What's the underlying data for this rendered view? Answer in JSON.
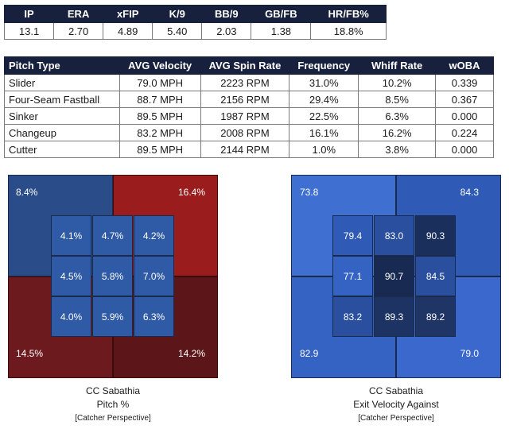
{
  "stats": {
    "headers": [
      "IP",
      "ERA",
      "xFIP",
      "K/9",
      "BB/9",
      "GB/FB",
      "HR/FB%"
    ],
    "values": [
      "13.1",
      "2.70",
      "4.89",
      "5.40",
      "2.03",
      "1.38",
      "18.8%"
    ]
  },
  "pitches": {
    "headers": [
      "Pitch Type",
      "AVG Velocity",
      "AVG Spin Rate",
      "Frequency",
      "Whiff Rate",
      "wOBA"
    ],
    "rows": [
      [
        "Slider",
        "79.0 MPH",
        "2223 RPM",
        "31.0%",
        "10.2%",
        "0.339"
      ],
      [
        "Four-Seam Fastball",
        "88.7 MPH",
        "2156 RPM",
        "29.4%",
        "8.5%",
        "0.367"
      ],
      [
        "Sinker",
        "89.5 MPH",
        "1987 RPM",
        "22.5%",
        "6.3%",
        "0.000"
      ],
      [
        "Changeup",
        "83.2 MPH",
        "2008 RPM",
        "16.1%",
        "16.2%",
        "0.224"
      ],
      [
        "Cutter",
        "89.5 MPH",
        "2144 RPM",
        "1.0%",
        "3.8%",
        "0.000"
      ]
    ]
  },
  "pitch_zone": {
    "outer": {
      "top_left": "8.4%",
      "top_right": "16.4%",
      "bottom_left": "14.5%",
      "bottom_right": "14.2%"
    },
    "outer_colors": {
      "top_left": "#2a4d8a",
      "top_right": "#9b1c1c",
      "bottom_left": "#6d1a1f",
      "bottom_right": "#5c1518"
    },
    "inner": [
      "4.1%",
      "4.7%",
      "4.2%",
      "4.5%",
      "5.8%",
      "7.0%",
      "4.0%",
      "5.9%",
      "6.3%"
    ],
    "inner_colors": [
      "#2f5aa5",
      "#2f5aa5",
      "#2f5aa5",
      "#2f5aa5",
      "#2f5aa5",
      "#2f5aa5",
      "#2f5aa5",
      "#2f5aa5",
      "#2f5aa5"
    ],
    "caption": {
      "player": "CC Sabathia",
      "metric": "Pitch %",
      "perspective": "[Catcher Perspective]"
    }
  },
  "ev_zone": {
    "outer": {
      "top_left": "73.8",
      "top_right": "84.3",
      "bottom_left": "82.9",
      "bottom_right": "79.0"
    },
    "outer_colors": {
      "top_left": "#3f6fd1",
      "top_right": "#2f5ab5",
      "bottom_left": "#3563c4",
      "bottom_right": "#3a68cc"
    },
    "inner": [
      "79.4",
      "83.0",
      "90.3",
      "77.1",
      "90.7",
      "84.5",
      "83.2",
      "89.3",
      "89.2"
    ],
    "inner_colors": [
      "#2f5ab5",
      "#2a4f9e",
      "#1b2f5c",
      "#3563c4",
      "#182a52",
      "#2a4f9e",
      "#2a4f9e",
      "#1d3363",
      "#1e3566"
    ],
    "caption": {
      "player": "CC Sabathia",
      "metric": "Exit Velocity Against",
      "perspective": "[Catcher Perspective]"
    }
  }
}
